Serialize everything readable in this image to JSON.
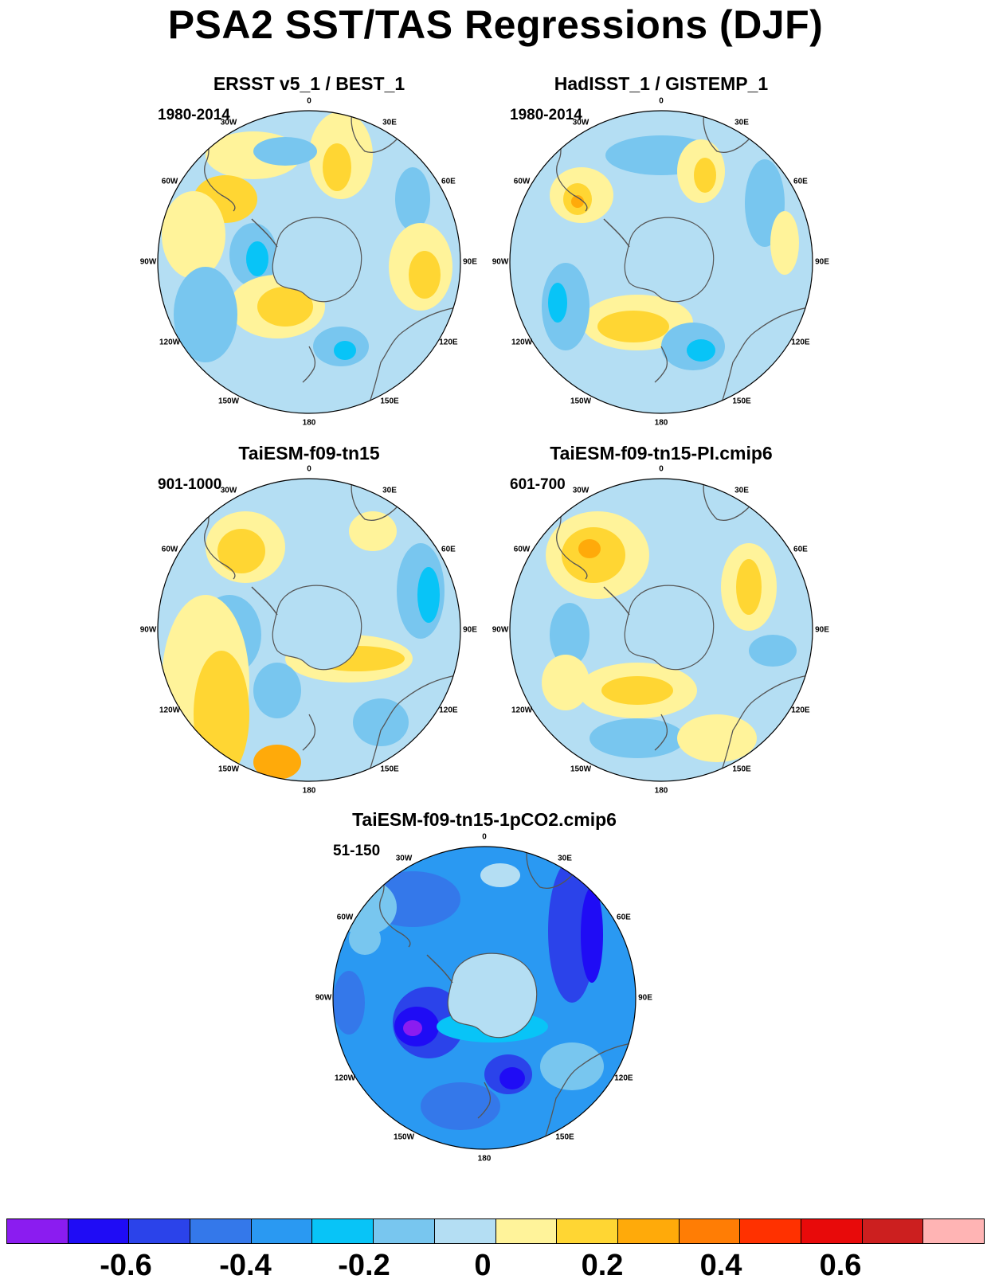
{
  "title": "PSA2 SST/TAS Regressions (DJF)",
  "longitude_labels": [
    "0",
    "30E",
    "60E",
    "90E",
    "120E",
    "150E",
    "180",
    "150W",
    "120W",
    "90W",
    "60W",
    "30W"
  ],
  "panels": [
    {
      "title": "ERSST v5_1 / BEST_1",
      "period": "1980-2014"
    },
    {
      "title": "HadISST_1 / GISTEMP_1",
      "period": "1980-2014"
    },
    {
      "title": "TaiESM-f09-tn15",
      "period": "901-1000"
    },
    {
      "title": "TaiESM-f09-tn15-PI.cmip6",
      "period": "601-700"
    },
    {
      "title": "TaiESM-f09-tn15-1pCO2.cmip6",
      "period": "51-150"
    }
  ],
  "colorbar": {
    "colors": [
      "#8b1cf0",
      "#1f0cf5",
      "#2b43ea",
      "#3478ea",
      "#2a99f2",
      "#08c4f7",
      "#78c6ef",
      "#b4def3",
      "#fff39a",
      "#ffd633",
      "#ffaa0a",
      "#ff7d05",
      "#ff3100",
      "#e80a0a",
      "#cc1f1f",
      "#ffb4b4"
    ],
    "tick_labels": [
      "-0.6",
      "-0.4",
      "-0.2",
      "0",
      "0.2",
      "0.4",
      "0.6"
    ]
  }
}
